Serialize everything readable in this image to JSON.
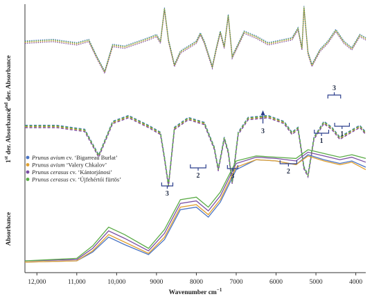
{
  "chart_data": {
    "type": "line",
    "xlabel": "Wavenumber cm",
    "xlabel_sup": "−1",
    "x_reversed": true,
    "xlim": [
      12300,
      3750
    ],
    "x_ticks": [
      12000,
      11000,
      10000,
      9000,
      8000,
      7000,
      6000,
      5000,
      4000
    ],
    "x_tick_labels": [
      "12,000",
      "11,000",
      "10,000",
      "9000",
      "8000",
      "7000",
      "6000",
      "5000",
      "4000"
    ],
    "y_panels": [
      {
        "label": "2",
        "label_sup": "nd",
        "label_rest": " der. Absorbance"
      },
      {
        "label": "1",
        "label_sup": "st",
        "label_rest": " der. Absorbance"
      },
      {
        "label": "Absorbance",
        "label_sup": "",
        "label_rest": ""
      }
    ],
    "legend_position": "left-middle",
    "series": [
      {
        "name": "Prunus avium cv. ‘Bigarreau Burlat’",
        "name_italic": "Prunus avium",
        "name_rest": " cv. ‘Bigarreau Burlat’",
        "color": "#4a74c4",
        "absorbance": [
          [
            12300,
            0.04
          ],
          [
            11000,
            0.05
          ],
          [
            10600,
            0.12
          ],
          [
            10200,
            0.24
          ],
          [
            9800,
            0.18
          ],
          [
            9200,
            0.1
          ],
          [
            8800,
            0.22
          ],
          [
            8400,
            0.46
          ],
          [
            8000,
            0.48
          ],
          [
            7700,
            0.4
          ],
          [
            7400,
            0.52
          ],
          [
            7000,
            0.78
          ],
          [
            6500,
            0.86
          ],
          [
            6000,
            0.85
          ],
          [
            5500,
            0.82
          ],
          [
            5200,
            0.9
          ],
          [
            4800,
            0.86
          ],
          [
            4400,
            0.83
          ],
          [
            4100,
            0.85
          ],
          [
            3750,
            0.8
          ]
        ]
      },
      {
        "name": "Prunus avium ‘Valery Chkalov’",
        "name_italic": "Prunus avium",
        "name_rest": " ‘Valery Chkalov’",
        "color": "#e0a030",
        "absorbance": [
          [
            12300,
            0.04
          ],
          [
            11000,
            0.05
          ],
          [
            10600,
            0.13
          ],
          [
            10200,
            0.26
          ],
          [
            9800,
            0.2
          ],
          [
            9200,
            0.11
          ],
          [
            8800,
            0.24
          ],
          [
            8400,
            0.48
          ],
          [
            8000,
            0.5
          ],
          [
            7700,
            0.42
          ],
          [
            7400,
            0.54
          ],
          [
            7000,
            0.8
          ],
          [
            6500,
            0.86
          ],
          [
            6000,
            0.85
          ],
          [
            5500,
            0.82
          ],
          [
            5200,
            0.89
          ],
          [
            4800,
            0.85
          ],
          [
            4400,
            0.82
          ],
          [
            4100,
            0.84
          ],
          [
            3750,
            0.78
          ]
        ]
      },
      {
        "name": "Prunus cerasus cv. ‘Kántorjánosi’",
        "name_italic": "Prunus cerasus",
        "name_rest": " cv. ‘Kántorjánosi’",
        "color": "#7a4ea3",
        "absorbance": [
          [
            12300,
            0.05
          ],
          [
            11000,
            0.06
          ],
          [
            10600,
            0.15
          ],
          [
            10200,
            0.29
          ],
          [
            9800,
            0.23
          ],
          [
            9200,
            0.13
          ],
          [
            8800,
            0.27
          ],
          [
            8400,
            0.51
          ],
          [
            8000,
            0.53
          ],
          [
            7700,
            0.45
          ],
          [
            7400,
            0.57
          ],
          [
            7000,
            0.83
          ],
          [
            6500,
            0.88
          ],
          [
            6000,
            0.87
          ],
          [
            5500,
            0.85
          ],
          [
            5200,
            0.92
          ],
          [
            4800,
            0.89
          ],
          [
            4400,
            0.86
          ],
          [
            4100,
            0.88
          ],
          [
            3750,
            0.84
          ]
        ]
      },
      {
        "name": "Prunus cerasus cv. ‘Újfehértói fürtös’",
        "name_italic": "Prunus cerasus",
        "name_rest": " cv. ‘Újfehértói fürtös’",
        "color": "#5aab46",
        "absorbance": [
          [
            12300,
            0.05
          ],
          [
            11000,
            0.07
          ],
          [
            10600,
            0.17
          ],
          [
            10200,
            0.32
          ],
          [
            9800,
            0.26
          ],
          [
            9200,
            0.15
          ],
          [
            8800,
            0.3
          ],
          [
            8400,
            0.54
          ],
          [
            8000,
            0.56
          ],
          [
            7700,
            0.48
          ],
          [
            7400,
            0.6
          ],
          [
            7000,
            0.85
          ],
          [
            6500,
            0.89
          ],
          [
            6000,
            0.88
          ],
          [
            5500,
            0.87
          ],
          [
            5200,
            0.94
          ],
          [
            4800,
            0.91
          ],
          [
            4400,
            0.88
          ],
          [
            4100,
            0.9
          ],
          [
            3750,
            0.87
          ]
        ]
      }
    ],
    "first_derivative_mean": [
      [
        12300,
        0.62
      ],
      [
        11500,
        0.62
      ],
      [
        10800,
        0.58
      ],
      [
        10450,
        0.32
      ],
      [
        10100,
        0.66
      ],
      [
        9700,
        0.72
      ],
      [
        9200,
        0.62
      ],
      [
        8900,
        0.55
      ],
      [
        8800,
        0.3
      ],
      [
        8700,
        0.02
      ],
      [
        8550,
        0.6
      ],
      [
        8200,
        0.7
      ],
      [
        7800,
        0.65
      ],
      [
        7550,
        0.4
      ],
      [
        7450,
        0.18
      ],
      [
        7300,
        0.5
      ],
      [
        7200,
        0.36
      ],
      [
        7100,
        0.05
      ],
      [
        6950,
        0.55
      ],
      [
        6700,
        0.7
      ],
      [
        6200,
        0.72
      ],
      [
        5800,
        0.66
      ],
      [
        5600,
        0.55
      ],
      [
        5450,
        0.6
      ],
      [
        5300,
        0.2
      ],
      [
        5200,
        0.12
      ],
      [
        5050,
        0.5
      ],
      [
        4800,
        0.66
      ],
      [
        4600,
        0.6
      ],
      [
        4400,
        0.5
      ],
      [
        4200,
        0.55
      ],
      [
        3900,
        0.62
      ],
      [
        3750,
        0.55
      ]
    ],
    "second_derivative_mean": [
      [
        12300,
        0.58
      ],
      [
        11600,
        0.6
      ],
      [
        11000,
        0.56
      ],
      [
        10700,
        0.6
      ],
      [
        10500,
        0.4
      ],
      [
        10300,
        0.22
      ],
      [
        10100,
        0.54
      ],
      [
        9800,
        0.52
      ],
      [
        9200,
        0.62
      ],
      [
        9000,
        0.66
      ],
      [
        8900,
        0.58
      ],
      [
        8800,
        0.98
      ],
      [
        8700,
        0.6
      ],
      [
        8550,
        0.3
      ],
      [
        8400,
        0.46
      ],
      [
        8200,
        0.52
      ],
      [
        8000,
        0.58
      ],
      [
        7900,
        0.68
      ],
      [
        7800,
        0.58
      ],
      [
        7600,
        0.28
      ],
      [
        7500,
        0.5
      ],
      [
        7400,
        0.7
      ],
      [
        7300,
        0.52
      ],
      [
        7200,
        0.9
      ],
      [
        7100,
        0.4
      ],
      [
        6950,
        0.55
      ],
      [
        6800,
        0.7
      ],
      [
        6500,
        0.64
      ],
      [
        6200,
        0.56
      ],
      [
        5800,
        0.6
      ],
      [
        5600,
        0.62
      ],
      [
        5450,
        0.74
      ],
      [
        5350,
        0.5
      ],
      [
        5300,
        1.0
      ],
      [
        5200,
        0.45
      ],
      [
        5100,
        0.3
      ],
      [
        4900,
        0.48
      ],
      [
        4700,
        0.58
      ],
      [
        4500,
        0.72
      ],
      [
        4300,
        0.58
      ],
      [
        4100,
        0.5
      ],
      [
        3900,
        0.66
      ],
      [
        3750,
        0.62
      ]
    ],
    "annotations": [
      {
        "text": "3",
        "kind": "bracket-below",
        "x_from": 8870,
        "x_to": 8590
      },
      {
        "text": "2",
        "kind": "bracket-below",
        "x_from": 8150,
        "x_to": 7760
      },
      {
        "text": "3",
        "kind": "bracket-below",
        "x_from": 7220,
        "x_to": 6960
      },
      {
        "text": "2",
        "kind": "bracket-below",
        "x_from": 5900,
        "x_to": 5480
      },
      {
        "text": "3",
        "kind": "arrow-up",
        "x_from": 6330,
        "x_to": 6330
      },
      {
        "text": "3",
        "kind": "bracket-above",
        "x_from": 4700,
        "x_to": 4380
      },
      {
        "text": "1",
        "kind": "bracket-below",
        "x_from": 5040,
        "x_to": 4680
      },
      {
        "text": "1",
        "kind": "bracket-below",
        "x_from": 4530,
        "x_to": 4160
      }
    ]
  }
}
